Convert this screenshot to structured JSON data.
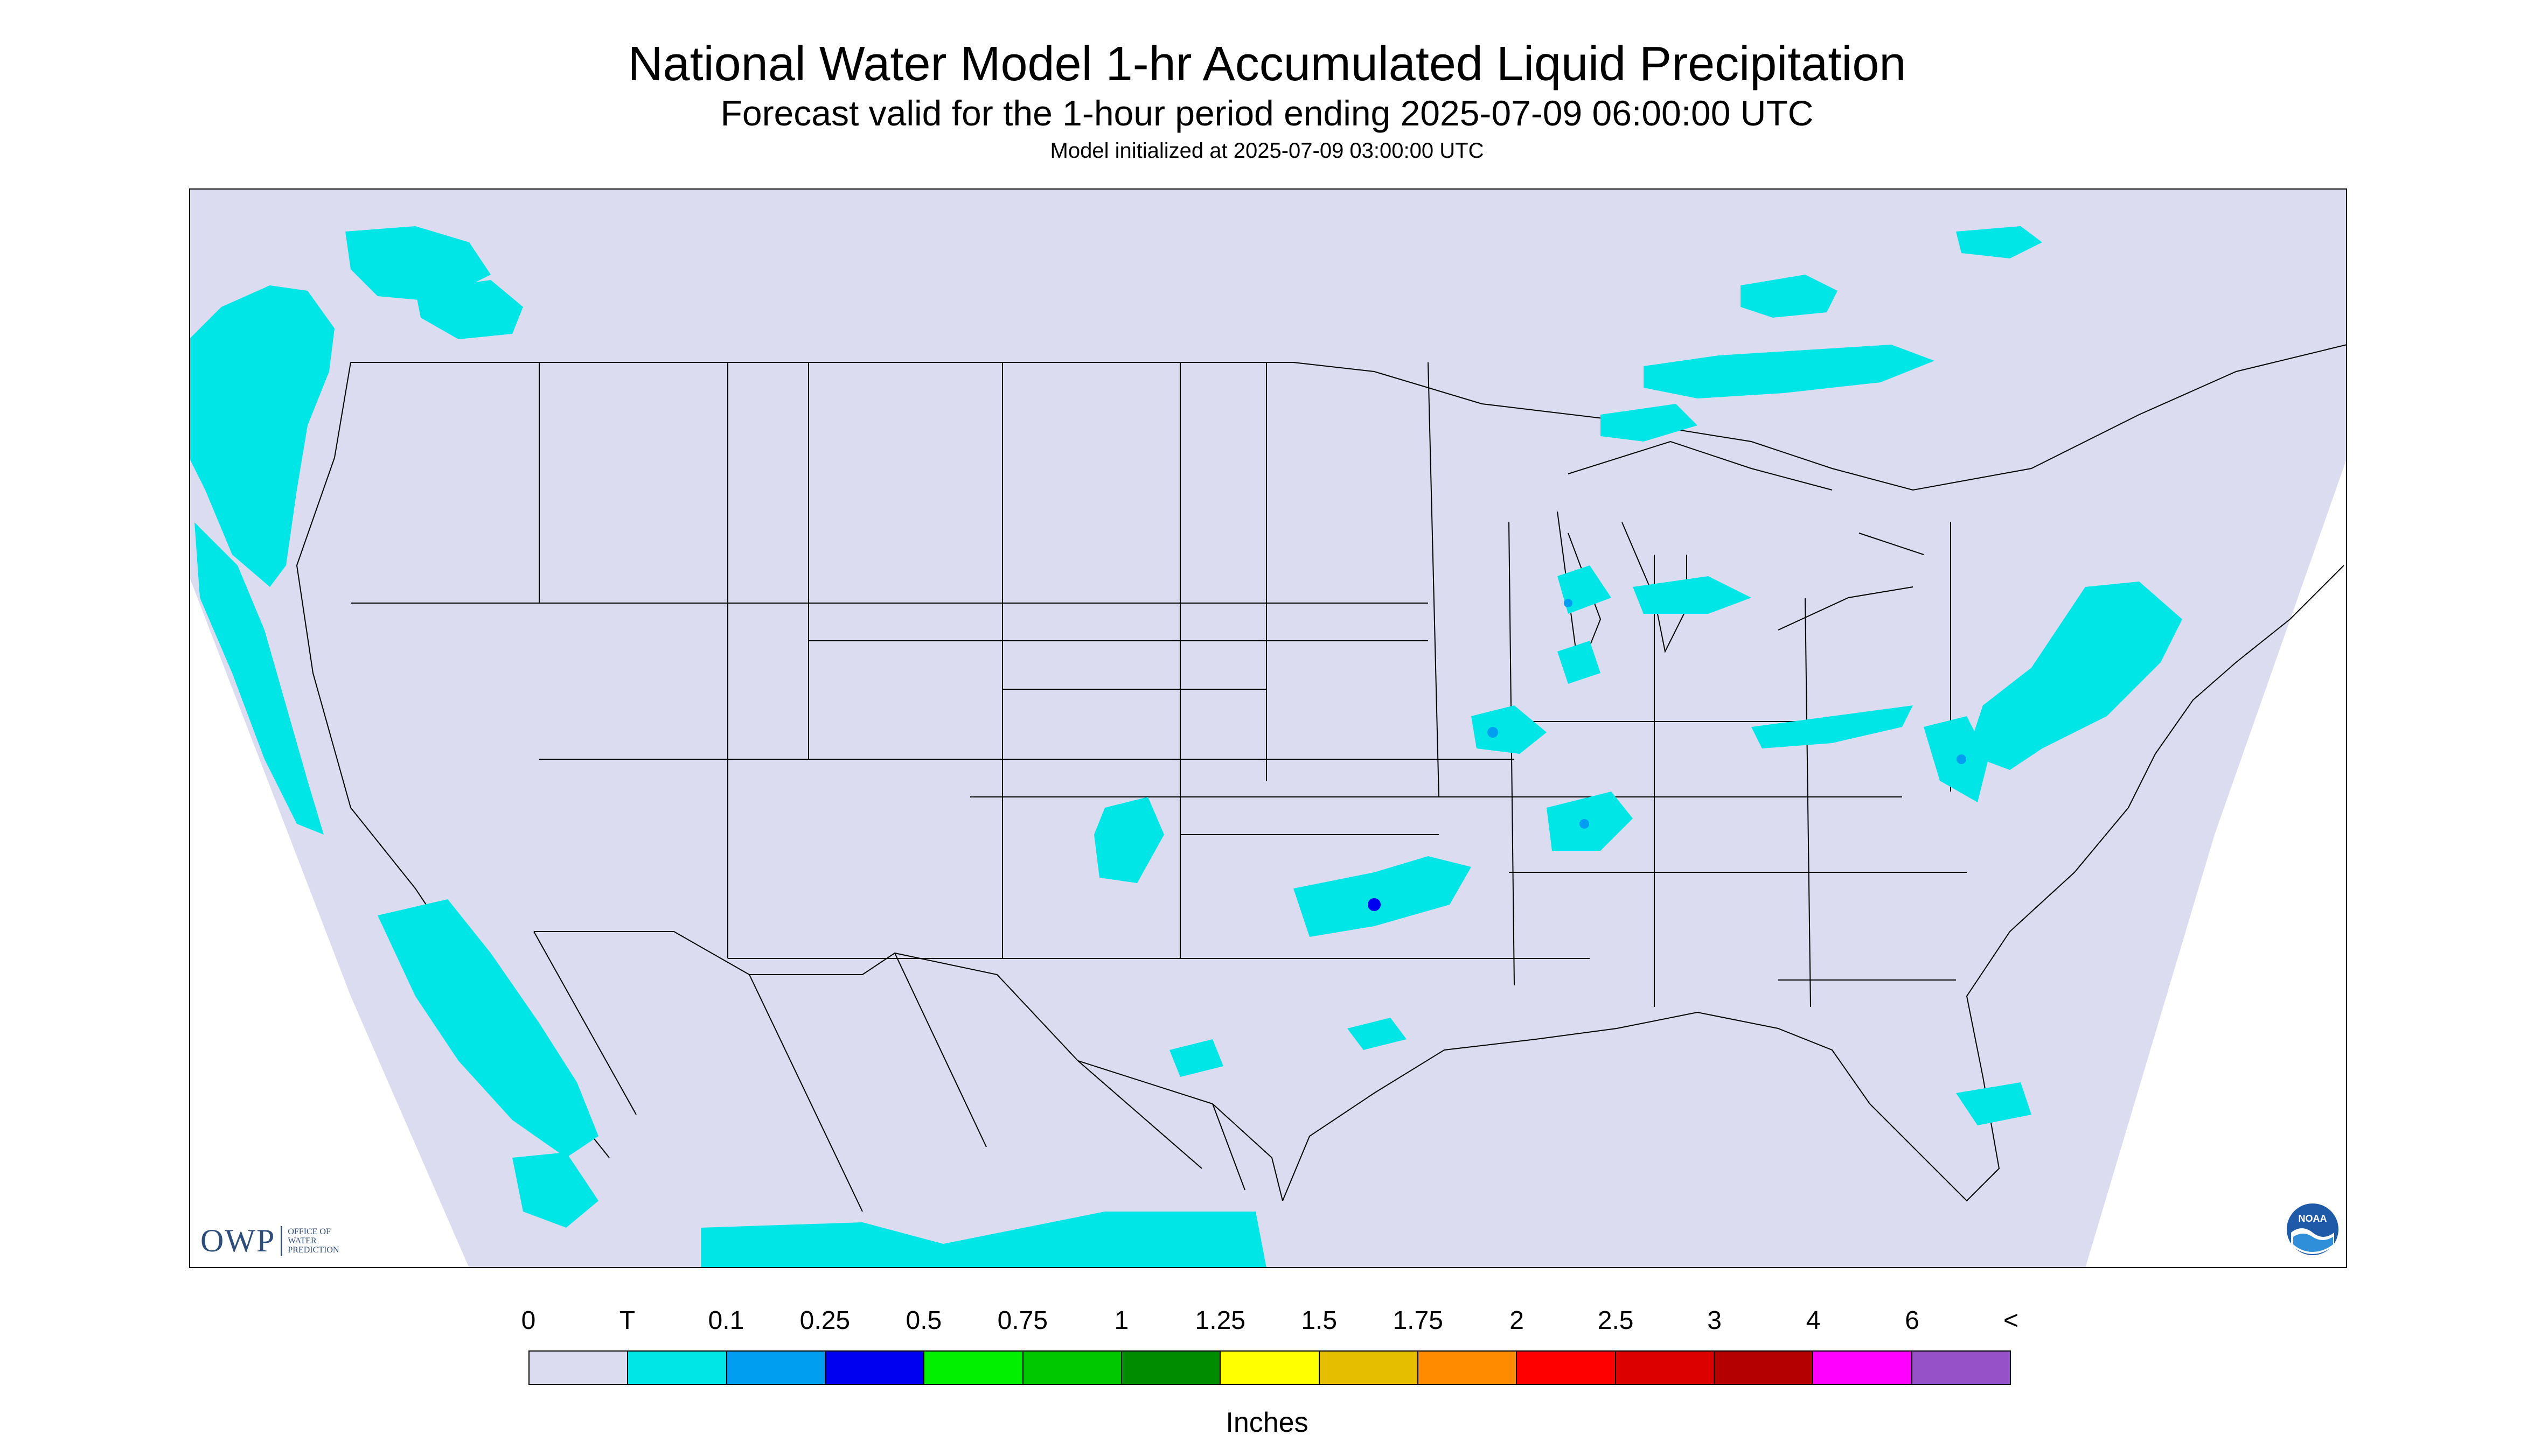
{
  "title": "National Water Model 1-hr Accumulated Liquid Precipitation",
  "subtitle": "Forecast valid for the 1-hour period ending 2025-07-09 06:00:00 UTC",
  "init_line": "Model initialized at 2025-07-09 03:00:00 UTC",
  "legend": {
    "units": "Inches",
    "ticks": [
      "0",
      "T",
      "0.1",
      "0.25",
      "0.5",
      "0.75",
      "1",
      "1.25",
      "1.5",
      "1.75",
      "2",
      "2.5",
      "3",
      "4",
      "6",
      "<"
    ],
    "colors": [
      "#dcdcf0",
      "#00e6e6",
      "#009ef0",
      "#0000f0",
      "#00f000",
      "#00c800",
      "#008c00",
      "#ffff00",
      "#e6be00",
      "#ff8c00",
      "#ff0000",
      "#dc0000",
      "#b40000",
      "#ff00ff",
      "#9650c8"
    ]
  },
  "logos": {
    "owp_mark": "OWP",
    "owp_text": "OFFICE OF WATER PREDICTION",
    "noaa_text": "NOAA"
  },
  "map": {
    "background_color": "#dcdcf0",
    "precip_light_color": "#00e6e6",
    "precip_medium_color": "#009ef0",
    "precip_heavy_color": "#0000f0",
    "boundary_color": "#000000"
  }
}
